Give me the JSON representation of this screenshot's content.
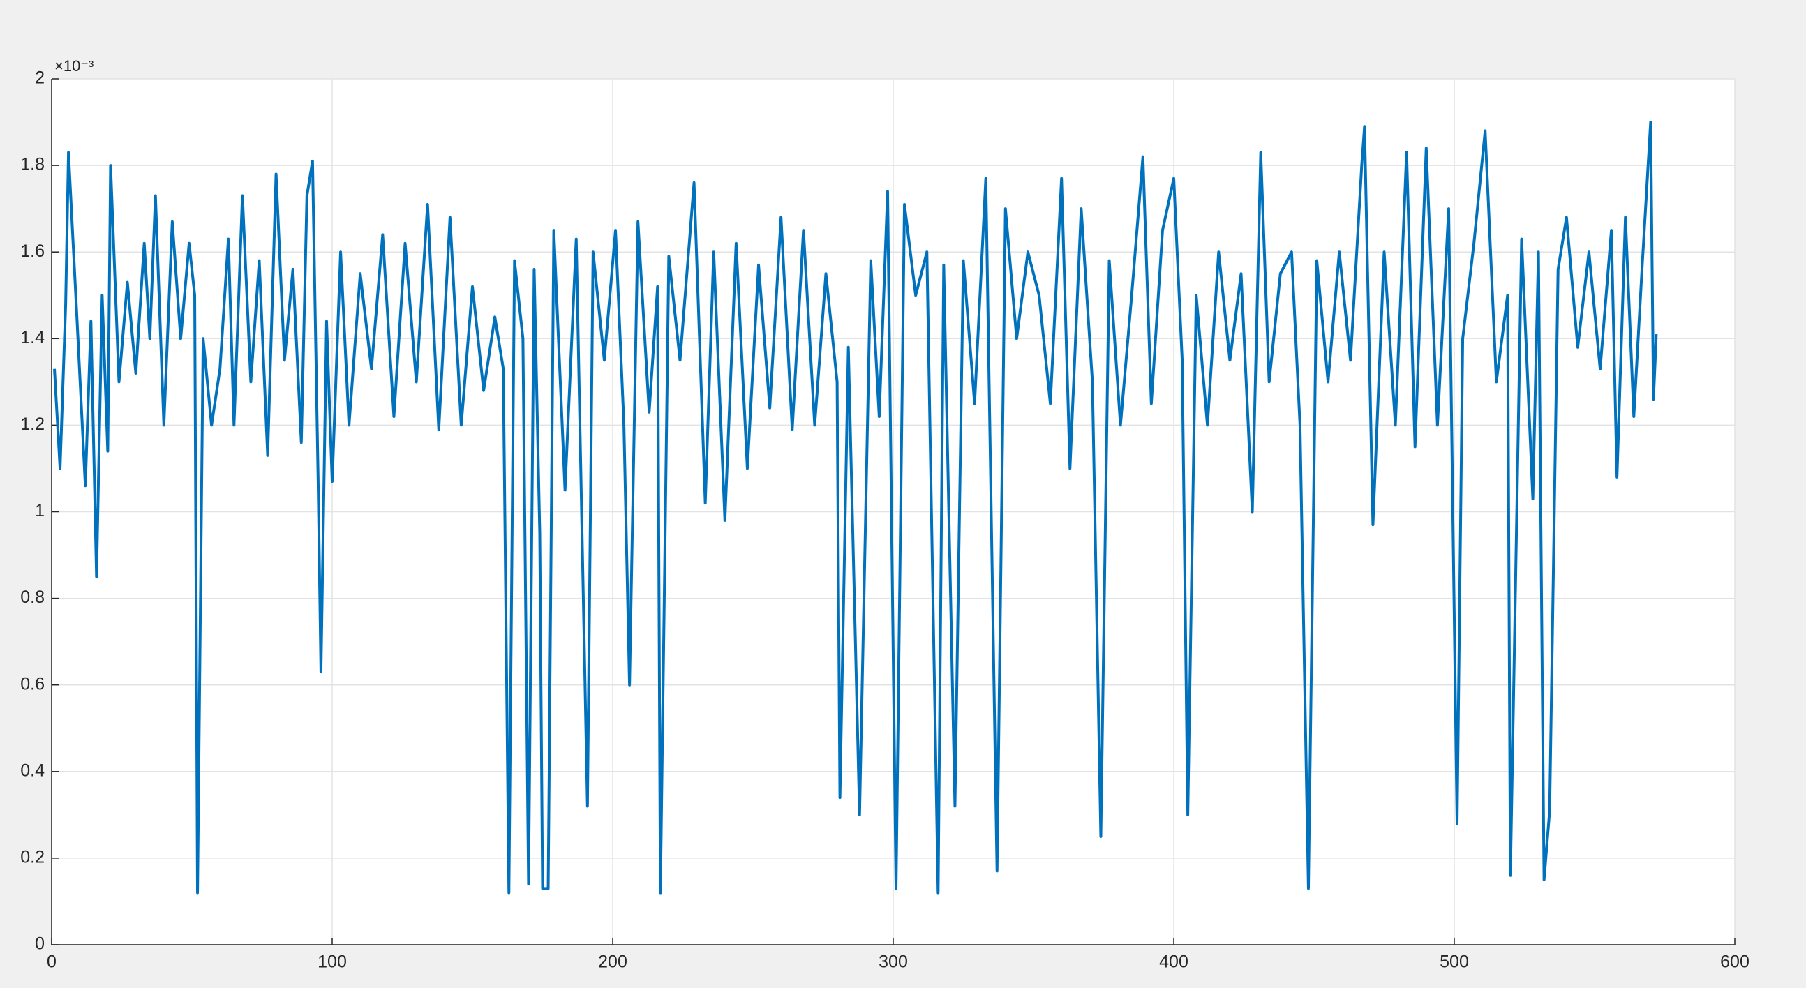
{
  "chart_data": {
    "type": "line",
    "y_exponent": "×10⁻³",
    "xlim": [
      0,
      600
    ],
    "xticks": [
      0,
      100,
      200,
      300,
      400,
      500,
      600
    ],
    "ylim": [
      0,
      2
    ],
    "yticks": [
      0,
      0.2,
      0.4,
      0.6,
      0.8,
      1,
      1.2,
      1.4,
      1.6,
      1.8,
      2
    ],
    "grid": true,
    "series": [
      {
        "color": "#0072bd",
        "x": [
          1,
          3,
          5,
          6,
          9,
          12,
          14,
          16,
          18,
          20,
          21,
          24,
          27,
          30,
          33,
          35,
          37,
          40,
          43,
          46,
          49,
          51,
          52,
          54,
          57,
          60,
          63,
          65,
          68,
          71,
          74,
          77,
          80,
          83,
          86,
          89,
          91,
          93,
          95,
          96,
          98,
          100,
          103,
          106,
          110,
          114,
          118,
          122,
          126,
          130,
          134,
          138,
          142,
          146,
          150,
          154,
          158,
          161,
          163,
          165,
          168,
          170,
          172,
          174,
          175,
          177,
          179,
          183,
          187,
          191,
          193,
          197,
          201,
          204,
          206,
          209,
          213,
          216,
          217,
          220,
          224,
          229,
          233,
          236,
          240,
          244,
          248,
          252,
          256,
          260,
          264,
          268,
          272,
          276,
          280,
          281,
          284,
          288,
          292,
          295,
          298,
          301,
          304,
          308,
          312,
          316,
          318,
          322,
          325,
          329,
          333,
          337,
          340,
          344,
          348,
          352,
          356,
          360,
          363,
          367,
          371,
          374,
          377,
          381,
          385,
          389,
          392,
          396,
          400,
          403,
          405,
          408,
          412,
          416,
          420,
          424,
          428,
          431,
          434,
          438,
          442,
          445,
          448,
          451,
          455,
          459,
          463,
          467,
          468,
          471,
          475,
          479,
          483,
          486,
          490,
          494,
          498,
          501,
          503,
          507,
          511,
          515,
          519,
          520,
          524,
          528,
          530,
          532,
          534,
          537,
          540,
          544,
          548,
          552,
          556,
          558,
          561,
          564,
          567,
          570,
          571,
          572
        ],
        "values": [
          1.33,
          1.1,
          1.48,
          1.83,
          1.45,
          1.06,
          1.44,
          0.85,
          1.5,
          1.14,
          1.8,
          1.3,
          1.53,
          1.32,
          1.62,
          1.4,
          1.73,
          1.2,
          1.67,
          1.4,
          1.62,
          1.5,
          0.12,
          1.4,
          1.2,
          1.33,
          1.63,
          1.2,
          1.73,
          1.3,
          1.58,
          1.13,
          1.78,
          1.35,
          1.56,
          1.16,
          1.73,
          1.81,
          1.07,
          0.63,
          1.44,
          1.07,
          1.6,
          1.2,
          1.55,
          1.33,
          1.64,
          1.22,
          1.62,
          1.3,
          1.71,
          1.19,
          1.68,
          1.2,
          1.52,
          1.28,
          1.45,
          1.33,
          0.12,
          1.58,
          1.4,
          0.14,
          1.56,
          0.95,
          0.13,
          0.13,
          1.65,
          1.05,
          1.63,
          0.32,
          1.6,
          1.35,
          1.65,
          1.2,
          0.6,
          1.67,
          1.23,
          1.52,
          0.12,
          1.59,
          1.35,
          1.76,
          1.02,
          1.6,
          0.98,
          1.62,
          1.1,
          1.57,
          1.24,
          1.68,
          1.19,
          1.65,
          1.2,
          1.55,
          1.3,
          0.34,
          1.38,
          0.3,
          1.58,
          1.22,
          1.74,
          0.13,
          1.71,
          1.5,
          1.6,
          0.12,
          1.57,
          0.32,
          1.58,
          1.25,
          1.77,
          0.17,
          1.7,
          1.4,
          1.6,
          1.5,
          1.25,
          1.77,
          1.1,
          1.7,
          1.3,
          0.25,
          1.58,
          1.2,
          1.5,
          1.82,
          1.25,
          1.65,
          1.77,
          1.35,
          0.3,
          1.5,
          1.2,
          1.6,
          1.35,
          1.55,
          1.0,
          1.83,
          1.3,
          1.55,
          1.6,
          1.2,
          0.13,
          1.58,
          1.3,
          1.6,
          1.35,
          1.8,
          1.89,
          0.97,
          1.6,
          1.2,
          1.83,
          1.15,
          1.84,
          1.2,
          1.7,
          0.28,
          1.4,
          1.62,
          1.88,
          1.3,
          1.5,
          0.16,
          1.63,
          1.03,
          1.6,
          0.15,
          0.31,
          1.56,
          1.68,
          1.38,
          1.6,
          1.33,
          1.65,
          1.08,
          1.68,
          1.22,
          1.57,
          1.9,
          1.26,
          1.41
        ]
      }
    ]
  }
}
